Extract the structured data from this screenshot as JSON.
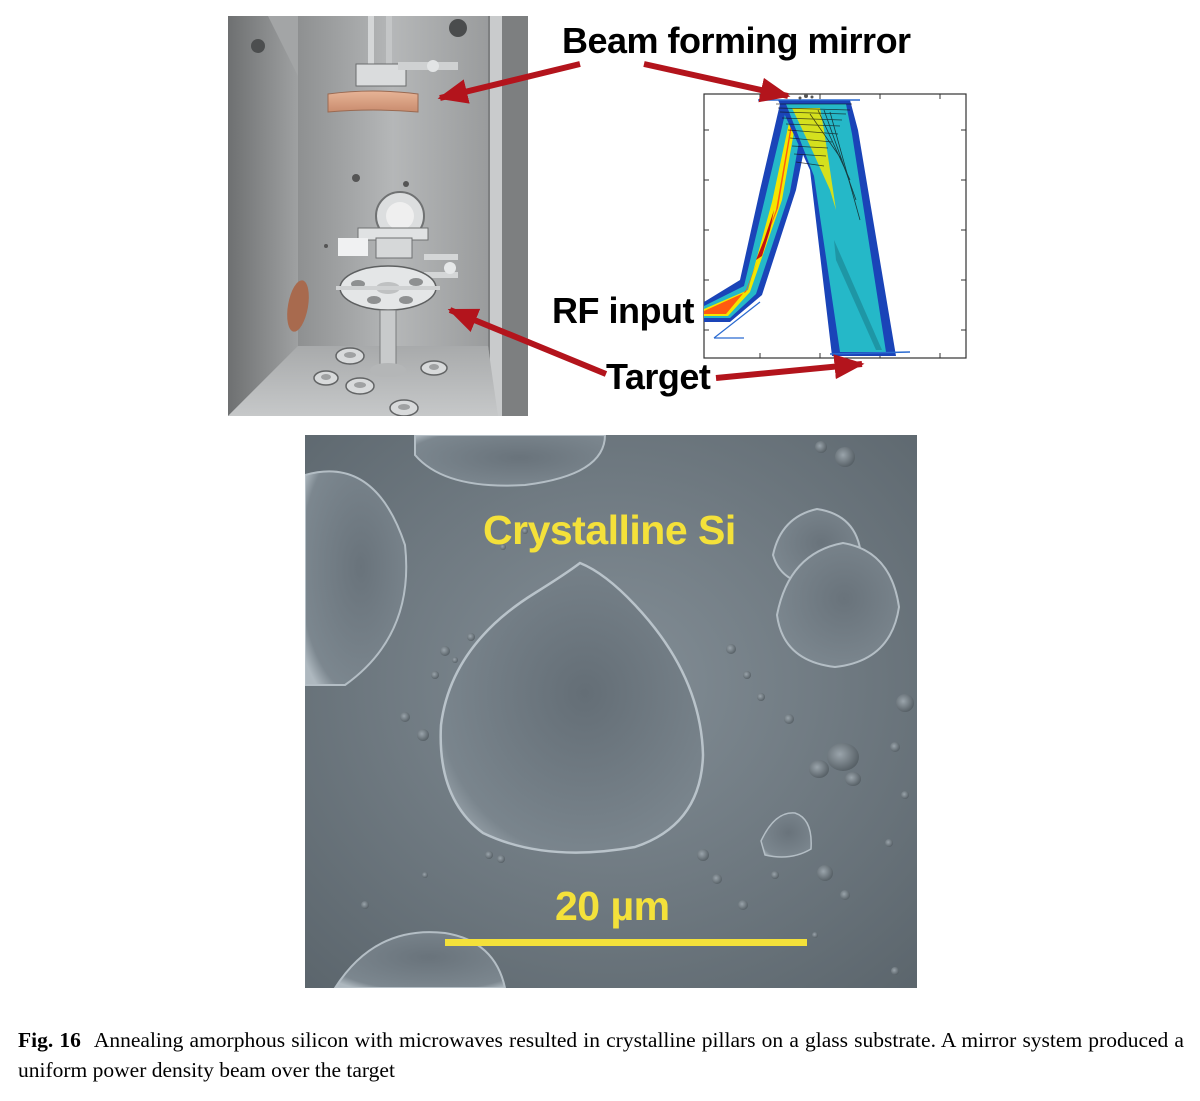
{
  "figure": {
    "annotations": {
      "beam_forming_mirror": "Beam forming mirror",
      "rf_input": "RF input",
      "target": "Target"
    },
    "sem": {
      "label": "Crystalline Si",
      "scale": "20 µm"
    },
    "caption": {
      "number": "Fig. 16",
      "text": "Annealing amorphous silicon with microwaves resulted in crystalline pillars on a glass substrate. A mirror system produced a uniform power density beam over the target"
    },
    "colors": {
      "arrow": "#b3141c",
      "sem_text": "#f4e13a"
    }
  }
}
